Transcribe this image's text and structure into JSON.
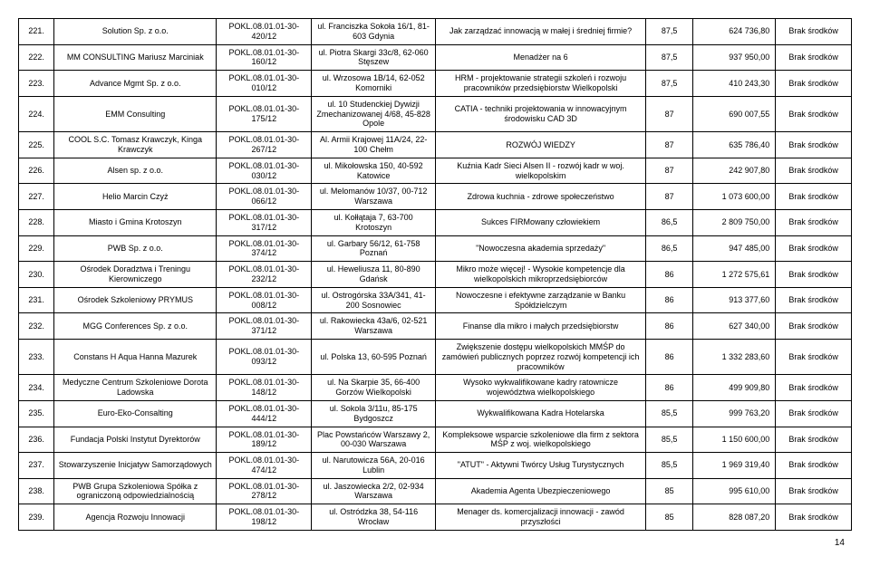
{
  "page_number": "14",
  "rows": [
    {
      "n": "221.",
      "name": "Solution Sp. z o.o.",
      "code": "POKL.08.01.01-30-420/12",
      "addr": "ul. Franciszka Sokoła 16/1,\n81-603 Gdynia",
      "desc": "Jak zarządzać innowacją w małej i średniej firmie?",
      "v1": "87,5",
      "v2": "624 736,80",
      "v3": "Brak środków"
    },
    {
      "n": "222.",
      "name": "MM CONSULTING Mariusz Marciniak",
      "code": "POKL.08.01.01-30-160/12",
      "addr": "ul. Piotra Skargi 33c/8,\n62-060 Stęszew",
      "desc": "Menadżer na 6",
      "v1": "87,5",
      "v2": "937 950,00",
      "v3": "Brak środków"
    },
    {
      "n": "223.",
      "name": "Advance Mgmt Sp. z o.o.",
      "code": "POKL.08.01.01-30-010/12",
      "addr": "ul. Wrzosowa 1B/14,\n62-052 Komorniki",
      "desc": "HRM - projektowanie strategii szkoleń i rozwoju pracowników przedsiębiorstw Wielkopolski",
      "v1": "87,5",
      "v2": "410 243,30",
      "v3": "Brak środków"
    },
    {
      "n": "224.",
      "name": "EMM Consulting",
      "code": "POKL.08.01.01-30-175/12",
      "addr": "ul. 10 Studenckiej Dywizji Zmechanizowanej 4/68,\n45-828 Opole",
      "desc": "CATIA - techniki projektowania w innowacyjnym środowisku CAD 3D",
      "v1": "87",
      "v2": "690 007,55",
      "v3": "Brak środków"
    },
    {
      "n": "225.",
      "name": "COOL S.C. Tomasz Krawczyk, Kinga Krawczyk",
      "code": "POKL.08.01.01-30-267/12",
      "addr": "Al. Armii Krajowej 11A/24,\n22-100 Chełm",
      "desc": "ROZWÓJ WIEDZY",
      "v1": "87",
      "v2": "635 786,40",
      "v3": "Brak środków"
    },
    {
      "n": "226.",
      "name": "Alsen sp. z o.o.",
      "code": "POKL.08.01.01-30-030/12",
      "addr": "ul. Mikołowska 150,\n40-592 Katowice",
      "desc": "Kuźnia Kadr Sieci Alsen II - rozwój kadr w woj. wielkopolskim",
      "v1": "87",
      "v2": "242 907,80",
      "v3": "Brak środków"
    },
    {
      "n": "227.",
      "name": "Helio Marcin Czyż",
      "code": "POKL.08.01.01-30-066/12",
      "addr": "ul. Melomanów 10/37,\n00-712 Warszawa",
      "desc": "Zdrowa kuchnia - zdrowe społeczeństwo",
      "v1": "87",
      "v2": "1 073 600,00",
      "v3": "Brak środków"
    },
    {
      "n": "228.",
      "name": "Miasto i Gmina Krotoszyn",
      "code": "POKL.08.01.01-30-317/12",
      "addr": "ul. Kołłątaja 7,\n63-700 Krotoszyn",
      "desc": "Sukces FIRMowany człowiekiem",
      "v1": "86,5",
      "v2": "2 809 750,00",
      "v3": "Brak środków"
    },
    {
      "n": "229.",
      "name": "PWB Sp. z o.o.",
      "code": "POKL.08.01.01-30-374/12",
      "addr": "ul. Garbary 56/12,\n61-758 Poznań",
      "desc": "\"Nowoczesna akademia sprzedaży\"",
      "v1": "86,5",
      "v2": "947 485,00",
      "v3": "Brak środków"
    },
    {
      "n": "230.",
      "name": "Ośrodek Doradztwa i Treningu Kierowniczego",
      "code": "POKL.08.01.01-30-232/12",
      "addr": "ul. Heweliusza 11,\n80-890 Gdańsk",
      "desc": "Mikro może więcej! - Wysokie kompetencje dla wielkopolskich mikroprzedsiębiorców",
      "v1": "86",
      "v2": "1 272 575,61",
      "v3": "Brak środków"
    },
    {
      "n": "231.",
      "name": "Ośrodek Szkoleniowy PRYMUS",
      "code": "POKL.08.01.01-30-008/12",
      "addr": "ul. Ostrogórska 33A/341,\n41-200 Sosnowiec",
      "desc": "Nowoczesne i efektywne zarządzanie w Banku Spółdzielczym",
      "v1": "86",
      "v2": "913 377,60",
      "v3": "Brak środków"
    },
    {
      "n": "232.",
      "name": "MGG Conferences Sp. z o.o.",
      "code": "POKL.08.01.01-30-371/12",
      "addr": "ul. Rakowiecka 43a/6,\n02-521 Warszawa",
      "desc": "Finanse dla mikro i małych przedsiębiorstw",
      "v1": "86",
      "v2": "627 340,00",
      "v3": "Brak środków"
    },
    {
      "n": "233.",
      "name": "Constans H Aqua Hanna Mazurek",
      "code": "POKL.08.01.01-30-093/12",
      "addr": "ul. Polska 13,\n60-595 Poznań",
      "desc": "Zwiększenie dostępu wielkopolskich MMŚP do zamówień publicznych poprzez rozwój kompetencji ich pracowników",
      "v1": "86",
      "v2": "1 332 283,60",
      "v3": "Brak środków"
    },
    {
      "n": "234.",
      "name": "Medyczne Centrum Szkoleniowe Dorota Ladowska",
      "code": "POKL.08.01.01-30-148/12",
      "addr": "ul. Na Skarpie 35,\n66-400 Gorzów Wielkopolski",
      "desc": "Wysoko wykwalifikowane kadry ratownicze województwa wielkopolskiego",
      "v1": "86",
      "v2": "499 909,80",
      "v3": "Brak środków"
    },
    {
      "n": "235.",
      "name": "Euro-Eko-Consalting",
      "code": "POKL.08.01.01-30-444/12",
      "addr": "ul. Sokola 3/11u,\n85-175 Bydgoszcz",
      "desc": "Wykwalifikowana Kadra Hotelarska",
      "v1": "85,5",
      "v2": "999 763,20",
      "v3": "Brak środków"
    },
    {
      "n": "236.",
      "name": "Fundacja Polski Instytut Dyrektorów",
      "code": "POKL.08.01.01-30-189/12",
      "addr": "Plac Powstańców Warszawy 2, 00-030 Warszawa",
      "desc": "Kompleksowe wsparcie szkoleniowe dla firm z sektora MŚP z woj. wielkopolskiego",
      "v1": "85,5",
      "v2": "1 150 600,00",
      "v3": "Brak środków"
    },
    {
      "n": "237.",
      "name": "Stowarzyszenie Inicjatyw Samorządowych",
      "code": "POKL.08.01.01-30-474/12",
      "addr": "ul. Narutowicza 56A,\n20-016 Lublin",
      "desc": "\"ATUT\" - Aktywni Twórcy Usług Turystycznych",
      "v1": "85,5",
      "v2": "1 969 319,40",
      "v3": "Brak środków"
    },
    {
      "n": "238.",
      "name": "PWB Grupa Szkoleniowa Spółka z ograniczoną odpowiedzialnością",
      "code": "POKL.08.01.01-30-278/12",
      "addr": "ul. Jaszowiecka 2/2,\n02-934 Warszawa",
      "desc": "Akademia Agenta Ubezpieczeniowego",
      "v1": "85",
      "v2": "995 610,00",
      "v3": "Brak środków"
    },
    {
      "n": "239.",
      "name": "Agencja Rozwoju Innowacji",
      "code": "POKL.08.01.01-30-198/12",
      "addr": "ul. Ostródzka 38,\n54-116 Wrocław",
      "desc": "Menager ds. komercjalizacji innowacji - zawód przyszłości",
      "v1": "85",
      "v2": "828 087,20",
      "v3": "Brak środków"
    }
  ]
}
